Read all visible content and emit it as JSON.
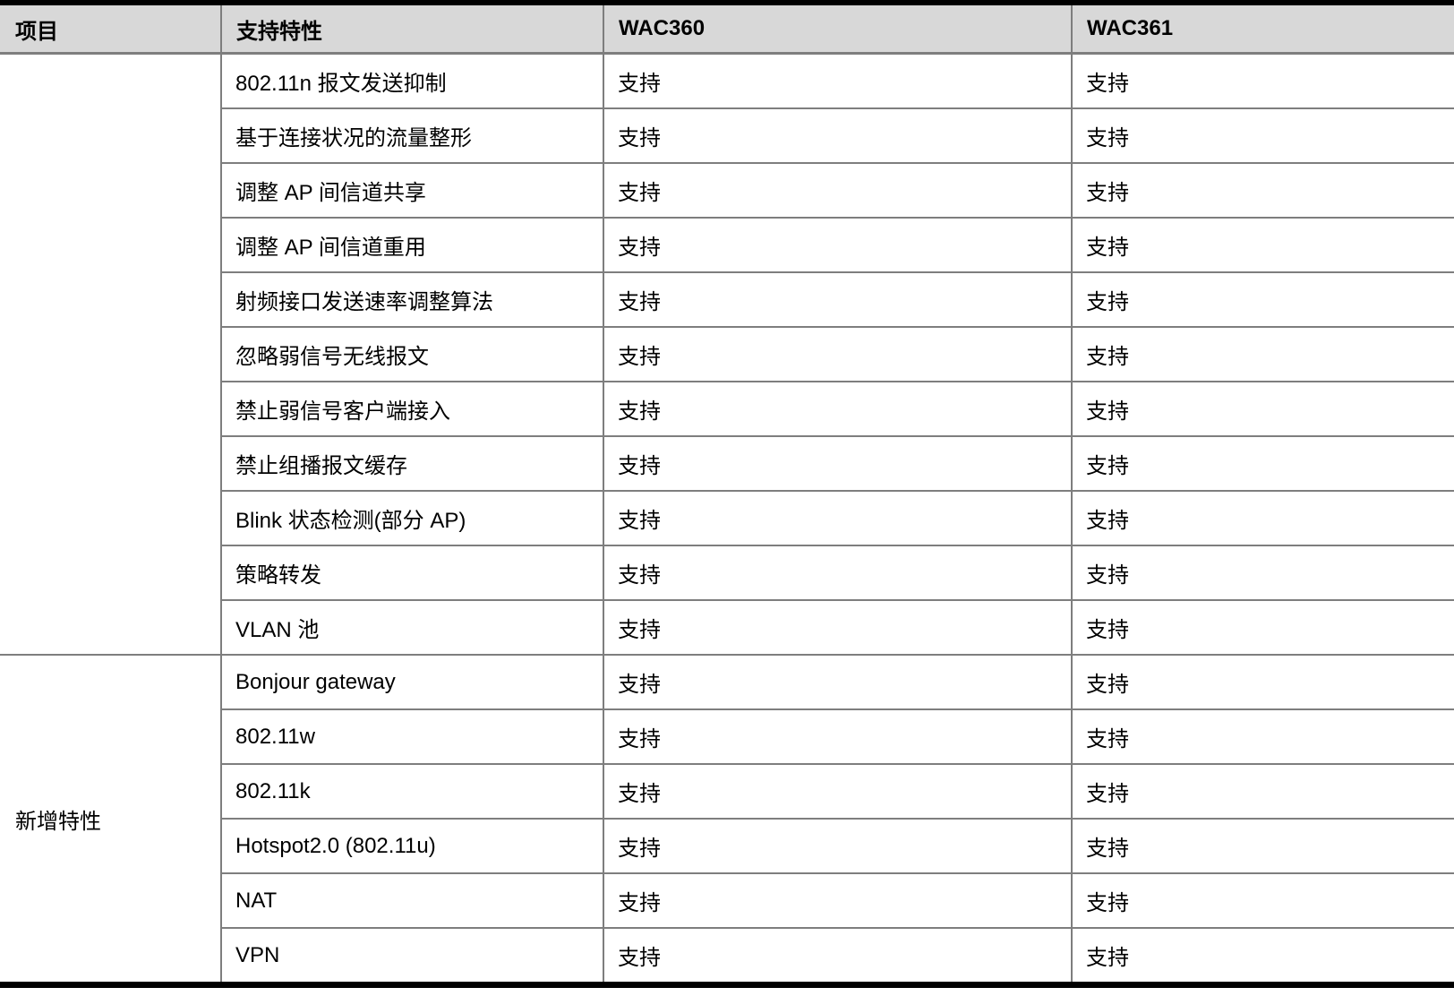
{
  "colors": {
    "header_bg": "#d8d8d8",
    "grid_line": "#7e7e7e",
    "frame_line": "#000000",
    "text": "#000000"
  },
  "table": {
    "columns": [
      "项目",
      "支持特性",
      "WAC360",
      "WAC361"
    ],
    "sections": [
      {
        "item": "",
        "rows": [
          {
            "feature": "802.11n 报文发送抑制",
            "wac360": "支持",
            "wac361": "支持"
          },
          {
            "feature": "基于连接状况的流量整形",
            "wac360": "支持",
            "wac361": "支持"
          },
          {
            "feature": "调整 AP 间信道共享",
            "wac360": "支持",
            "wac361": "支持"
          },
          {
            "feature": "调整 AP 间信道重用",
            "wac360": "支持",
            "wac361": "支持"
          },
          {
            "feature": "射频接口发送速率调整算法",
            "wac360": "支持",
            "wac361": "支持"
          },
          {
            "feature": "忽略弱信号无线报文",
            "wac360": "支持",
            "wac361": "支持"
          },
          {
            "feature": "禁止弱信号客户端接入",
            "wac360": "支持",
            "wac361": "支持"
          },
          {
            "feature": "禁止组播报文缓存",
            "wac360": "支持",
            "wac361": "支持"
          },
          {
            "feature": "Blink 状态检测(部分 AP)",
            "wac360": "支持",
            "wac361": "支持"
          },
          {
            "feature": "策略转发",
            "wac360": "支持",
            "wac361": "支持"
          },
          {
            "feature": "VLAN 池",
            "wac360": "支持",
            "wac361": "支持"
          }
        ]
      },
      {
        "item": "新增特性",
        "rows": [
          {
            "feature": "Bonjour gateway",
            "wac360": "支持",
            "wac361": "支持"
          },
          {
            "feature": "802.11w",
            "wac360": "支持",
            "wac361": "支持"
          },
          {
            "feature": "802.11k",
            "wac360": "支持",
            "wac361": "支持"
          },
          {
            "feature": "Hotspot2.0 (802.11u)",
            "wac360": "支持",
            "wac361": "支持"
          },
          {
            "feature": "NAT",
            "wac360": "支持",
            "wac361": "支持"
          },
          {
            "feature": "VPN",
            "wac360": "支持",
            "wac361": "支持"
          }
        ]
      }
    ]
  }
}
